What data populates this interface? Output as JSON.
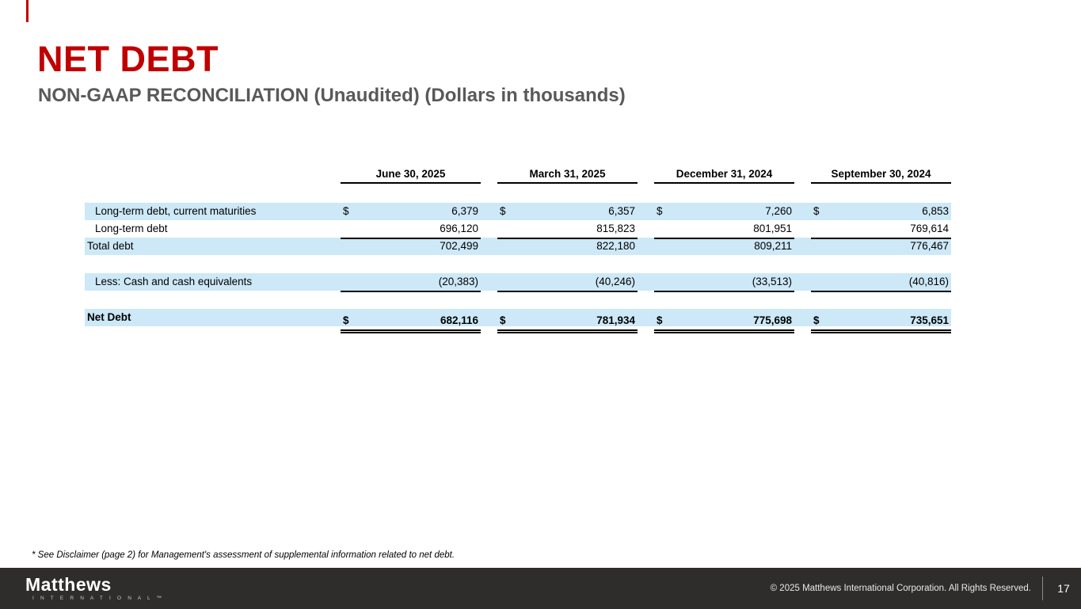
{
  "slide": {
    "title": "NET DEBT",
    "subtitle": "NON-GAAP RECONCILIATION (Unaudited) (Dollars in thousands)",
    "accent_color": "#c00000",
    "subtitle_color": "#595959",
    "row_highlight_color": "#cde8f7",
    "footer_background_color": "#2e2d2c"
  },
  "table": {
    "currency_symbol": "$",
    "column_headers": [
      "June 30, 2025",
      "March 31, 2025",
      "December 31, 2024",
      "September 30, 2024"
    ],
    "rows": [
      {
        "label": "Long-term debt, current maturities",
        "values": [
          "6,379",
          "6,357",
          "7,260",
          "6,853"
        ]
      },
      {
        "label": "Long-term debt",
        "values": [
          "696,120",
          "815,823",
          "801,951",
          "769,614"
        ]
      },
      {
        "label": "Total debt",
        "values": [
          "702,499",
          "822,180",
          "809,211",
          "776,467"
        ]
      },
      {
        "label": "Less: Cash and cash equivalents",
        "values": [
          "(20,383)",
          "(40,246)",
          "(33,513)",
          "(40,816)"
        ]
      },
      {
        "label": "Net Debt",
        "values": [
          "682,116",
          "781,934",
          "775,698",
          "735,651"
        ]
      }
    ]
  },
  "footnote": "* See Disclaimer (page 2) for Management's assessment of supplemental information related to net debt.",
  "footer": {
    "logo_primary": "Matthews",
    "logo_secondary": "I N T E R N A T I O N A L ™",
    "copyright": "© 2025 Matthews International Corporation. All Rights Reserved.",
    "page_number": "17"
  }
}
